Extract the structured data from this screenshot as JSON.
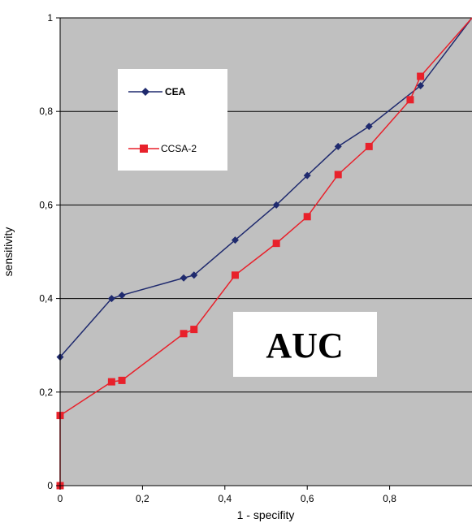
{
  "chart_data": {
    "type": "line",
    "title": "",
    "xlabel": "1 - specifity",
    "ylabel": "sensitivity",
    "xlim": [
      0,
      1
    ],
    "ylim": [
      0,
      1
    ],
    "x_ticks": [
      "0",
      "0,2",
      "0,4",
      "0,6",
      "0,8"
    ],
    "y_ticks": [
      "0",
      "0,2",
      "0,4",
      "0,6",
      "0,8",
      "1"
    ],
    "plot_background": "#c0c0c0",
    "grid": "horizontal",
    "legend_position": "upper-left inside plot",
    "series": [
      {
        "name": "CEA",
        "color": "#1f2a6e",
        "marker": "diamond",
        "points": [
          [
            0,
            0.275
          ],
          [
            0.125,
            0.4
          ],
          [
            0.15,
            0.407
          ],
          [
            0.3,
            0.444
          ],
          [
            0.325,
            0.45
          ],
          [
            0.425,
            0.525
          ],
          [
            0.525,
            0.6
          ],
          [
            0.6,
            0.663
          ],
          [
            0.675,
            0.725
          ],
          [
            0.75,
            0.768
          ],
          [
            0.875,
            0.855
          ],
          [
            1,
            1
          ]
        ]
      },
      {
        "name": "CCSA-2",
        "color": "#e8212b",
        "marker": "square",
        "points": [
          [
            0,
            0
          ],
          [
            0,
            0.15
          ],
          [
            0.125,
            0.222
          ],
          [
            0.15,
            0.225
          ],
          [
            0.3,
            0.325
          ],
          [
            0.325,
            0.334
          ],
          [
            0.425,
            0.45
          ],
          [
            0.525,
            0.518
          ],
          [
            0.6,
            0.575
          ],
          [
            0.675,
            0.665
          ],
          [
            0.75,
            0.725
          ],
          [
            0.85,
            0.825
          ],
          [
            0.875,
            0.875
          ],
          [
            1,
            1
          ]
        ]
      }
    ],
    "annotations": [
      "AUC"
    ]
  }
}
